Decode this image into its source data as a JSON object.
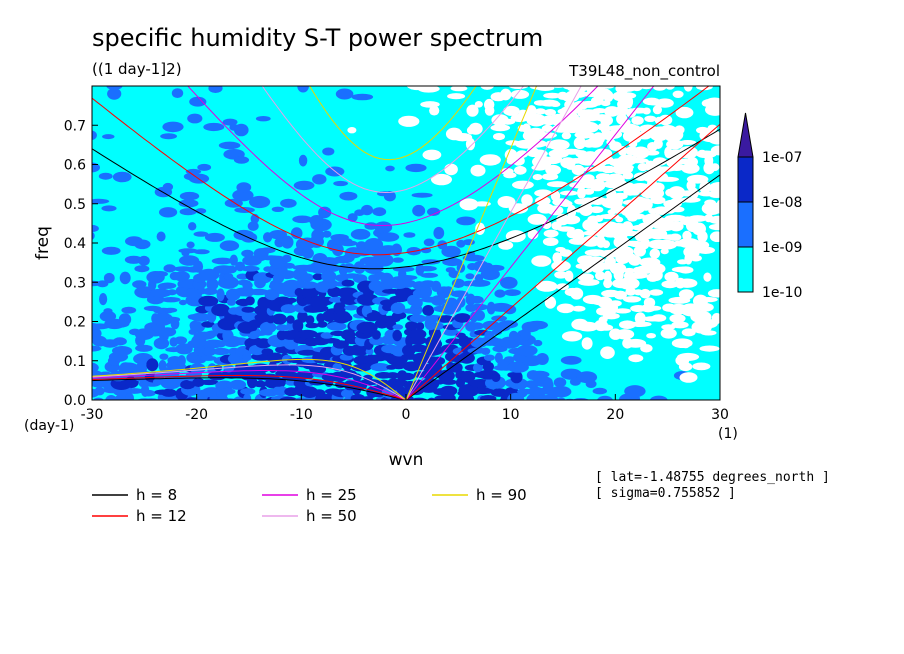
{
  "chart_data": {
    "type": "heatmap",
    "title": "specific humidity S-T power spectrum",
    "subtitle": "((1 day-1]2)",
    "experiment": "T39L48_non_control",
    "xlabel": "wvn",
    "ylabel": "freq",
    "x_unit_label": "(1)",
    "y_unit_label": "(day-1)",
    "xlim": [
      -30,
      30
    ],
    "ylim": [
      0,
      0.8
    ],
    "xticks": [
      "-30",
      "-20",
      "-10",
      "0",
      "10",
      "20",
      "30"
    ],
    "yticks": [
      "0.0",
      "0.1",
      "0.2",
      "0.3",
      "0.4",
      "0.5",
      "0.6",
      "0.7"
    ],
    "contour_levels": [
      "1e-10",
      "1e-09",
      "1e-08",
      "1e-07"
    ],
    "colorbar": [
      {
        "level": "1e-10",
        "color": "#00ffff"
      },
      {
        "level": "1e-09",
        "color": "#1a6fff"
      },
      {
        "level": "1e-08",
        "color": "#0a28c8"
      },
      {
        "level": "1e-07",
        "color": "#3a1aa0"
      }
    ],
    "dispersion_curves": [
      {
        "label": "h =  8",
        "h": 8,
        "color": "#000000"
      },
      {
        "label": "h = 12",
        "h": 12,
        "color": "#ff0000"
      },
      {
        "label": "h = 25",
        "h": 25,
        "color": "#e000e0"
      },
      {
        "label": "h = 50",
        "h": 50,
        "color": "#e8a0e8"
      },
      {
        "label": "h = 90",
        "h": 90,
        "color": "#e8d800"
      }
    ],
    "annotations": [
      "[ lat=-1.48755 degrees_north ]",
      "[ sigma=0.755852 ]"
    ]
  }
}
